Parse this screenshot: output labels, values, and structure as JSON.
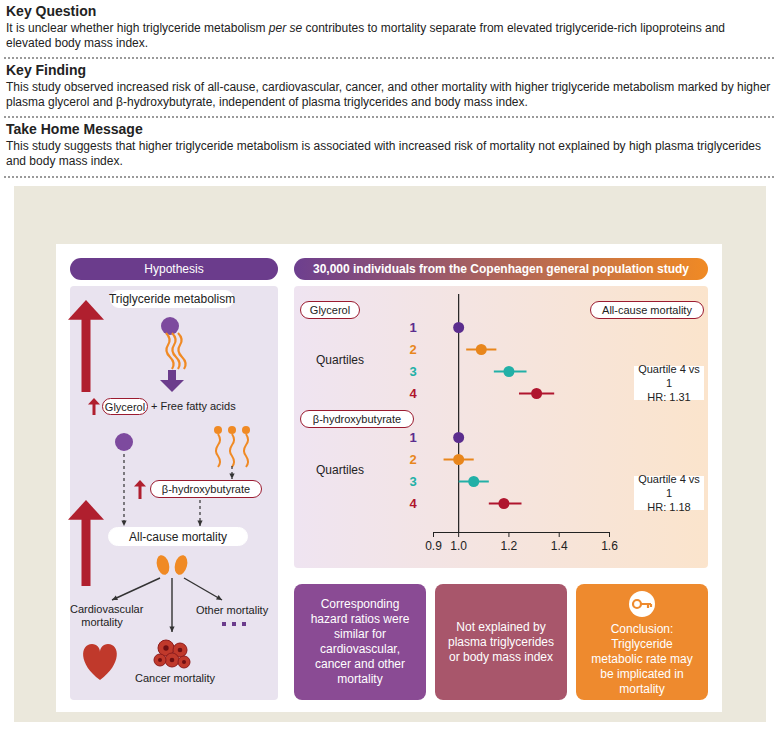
{
  "header": {
    "sections": [
      {
        "title": "Key Question",
        "text": "It is unclear whether high triglyceride metabolism per se contributes to mortality separate from elevated triglyceride-rich lipoproteins and elevated body mass index.",
        "italic": "per se"
      },
      {
        "title": "Key Finding",
        "text": "This study observed increased risk of all-cause, cardiovascular, cancer, and other mortality with higher triglyceride metabolism marked by higher plasma glycerol and β-hydroxybutyrate, independent of plasma triglycerides and body mass index."
      },
      {
        "title": "Take Home Message",
        "text": "This study suggests that higher triglyceride metabolism is associated with increased risk of mortality not explained by high plasma triglycerides and body mass index."
      }
    ]
  },
  "hypothesis": {
    "title": "Hypothesis",
    "labels": {
      "metabolism": "Triglyceride metabolism",
      "glycerol": "Glycerol",
      "ffa": "+ Free fatty acids",
      "bhb": "β-hydroxybutyrate",
      "all_cause": "All-cause mortality",
      "cardio": "Cardiovascular mortality",
      "cancer": "Cancer mortality",
      "other": "Other mortality"
    }
  },
  "study": {
    "title": "30,000 individuals from the Copenhagen general population study"
  },
  "chart_data": {
    "type": "forest",
    "title": "All-cause mortality",
    "category_label": "Quartiles",
    "categories": [
      "1",
      "2",
      "3",
      "4"
    ],
    "colors": [
      "#5b2d8e",
      "#e8861c",
      "#22b0a7",
      "#b0152e"
    ],
    "series": [
      {
        "name": "Glycerol",
        "values": [
          1,
          1.09,
          1.2,
          1.31
        ],
        "lower": [
          null,
          1.03,
          1.14,
          1.24
        ],
        "upper": [
          null,
          1.15,
          1.27,
          1.38
        ],
        "annotation": [
          "Quartile 4 vs 1",
          "HR: 1.31"
        ]
      },
      {
        "name": "β-hydroxybutyrate",
        "values": [
          1,
          1.0,
          1.06,
          1.18
        ],
        "lower": [
          null,
          0.94,
          1.0,
          1.12
        ],
        "upper": [
          null,
          1.06,
          1.12,
          1.25
        ],
        "annotation": [
          "Quartile 4 vs 1",
          "HR: 1.18"
        ]
      }
    ],
    "reference_line": 1,
    "xlim": [
      0.9,
      1.6
    ],
    "xticks": [
      0.9,
      {
        "value": 1,
        "label": "1.0"
      },
      1.2,
      1.4,
      1.6
    ]
  },
  "boxes": [
    {
      "text": "Corresponding hazard ratios were similar for cardiovascular, cancer and other mortality",
      "color": "#8a4b94"
    },
    {
      "text": "Not explained by plasma triglycerides or body mass index",
      "color": "#a8566b"
    },
    {
      "text": "Conclusion: Triglyceride metabolic rate may be implicated in mortality",
      "color": "#ee8a2e"
    }
  ]
}
